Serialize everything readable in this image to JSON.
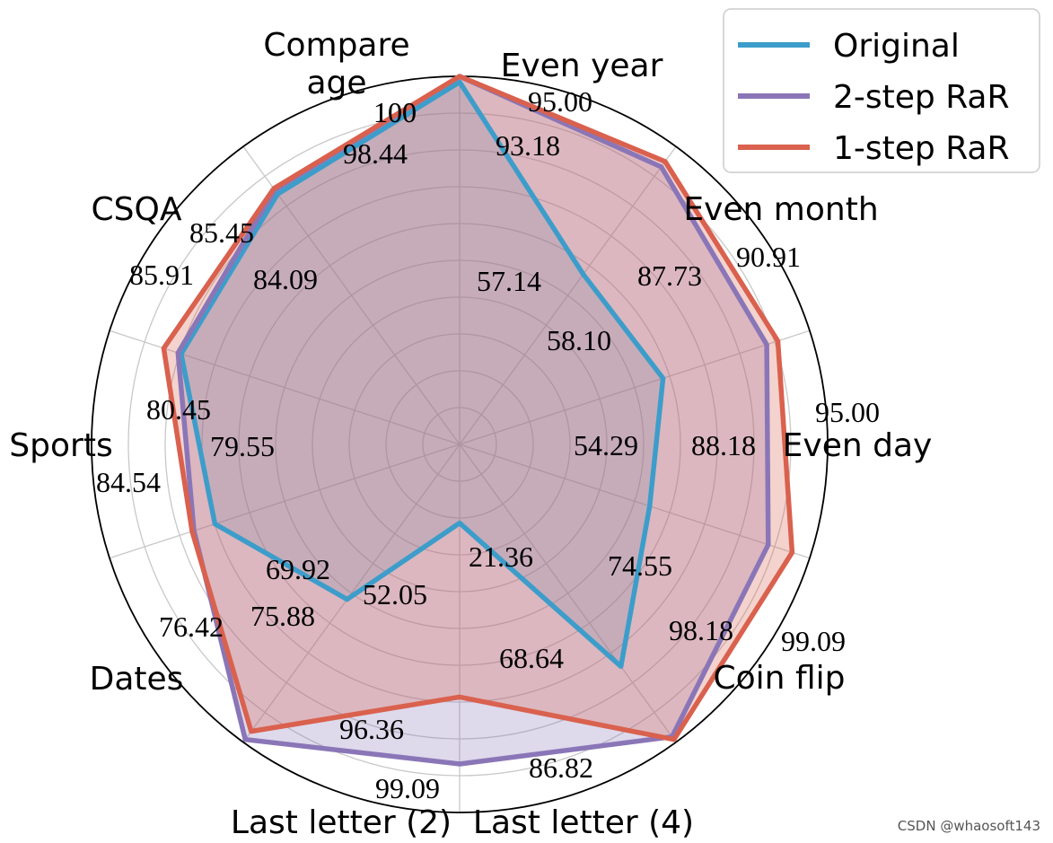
{
  "chart_data": {
    "type": "radar",
    "categories": [
      "Compare age",
      "Even year",
      "Even month",
      "Even day",
      "Coin flip",
      "Last letter (4)",
      "Last letter (2)",
      "Dates",
      "Sports",
      "CSQA"
    ],
    "axis_label_lines": [
      [
        "Compare",
        "age"
      ],
      [
        "Even year"
      ],
      [
        "Even month"
      ],
      [
        "Even day"
      ],
      [
        "Coin flip"
      ],
      [
        "Last letter (4)"
      ],
      [
        "Last letter (2)"
      ],
      [
        "Dates"
      ],
      [
        "Sports"
      ],
      [
        "CSQA"
      ]
    ],
    "rlim": [
      0,
      100
    ],
    "grid": true,
    "series": [
      {
        "name": "Original",
        "color": "#3d9dca",
        "values": [
          98.44,
          57.14,
          58.1,
          54.29,
          74.55,
          21.36,
          52.05,
          69.92,
          79.55,
          84.09
        ],
        "labels": [
          "98.44",
          "57.14",
          "58.10",
          "54.29",
          "74.55",
          "21.36",
          "52.05",
          "69.92",
          "79.55",
          "84.09"
        ]
      },
      {
        "name": "2-step RaR",
        "color": "#8a76b7",
        "values": [
          100,
          93.18,
          87.73,
          88.18,
          98.18,
          86.82,
          99.09,
          75.88,
          80.45,
          85.45
        ],
        "labels": [
          "100",
          "93.18",
          "87.73",
          "88.18",
          "98.18",
          "86.82",
          "99.09",
          "75.88",
          "80.45",
          "85.45"
        ]
      },
      {
        "name": "1-step RaR",
        "color": "#d9614e",
        "values": [
          100,
          95.0,
          90.91,
          95.0,
          99.09,
          68.64,
          96.36,
          76.42,
          84.54,
          85.91
        ],
        "labels": [
          "100",
          "95.00",
          "90.91",
          "95.00",
          "99.09",
          "68.64",
          "96.36",
          "76.42",
          "84.54",
          "85.91"
        ]
      }
    ],
    "legend": {
      "location": "top-right",
      "entries": [
        "Original",
        "2-step RaR",
        "1-step RaR"
      ]
    }
  },
  "watermark": "CSDN @whaosoft143"
}
